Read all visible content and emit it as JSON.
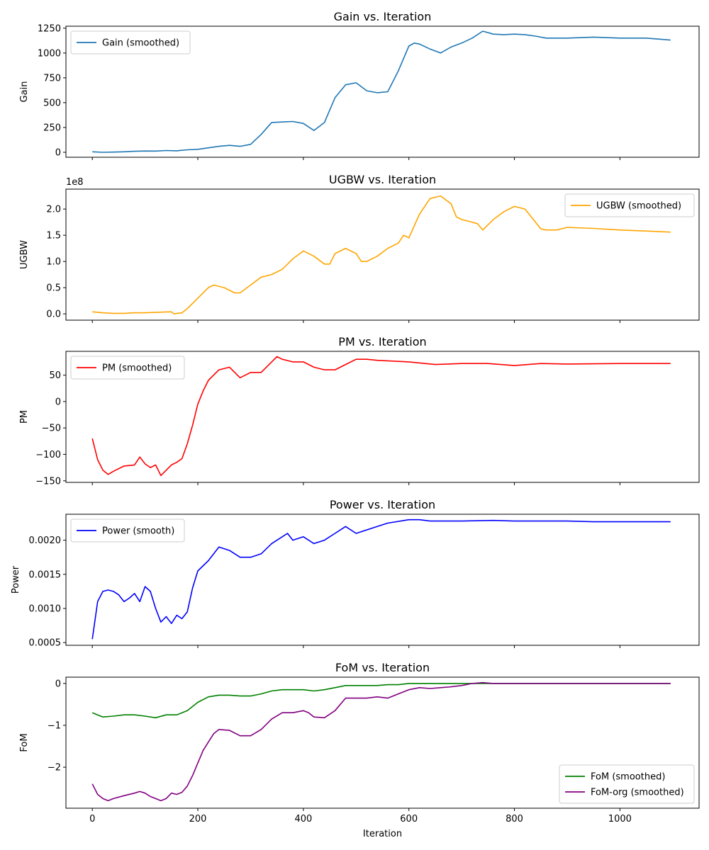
{
  "chart_data": [
    {
      "type": "line",
      "title": "Gain vs. Iteration",
      "ylabel": "Gain",
      "xlabel": "",
      "xlim": [
        -50,
        1150
      ],
      "ylim": [
        -50,
        1270
      ],
      "xticks": [
        0,
        200,
        400,
        600,
        800,
        1000
      ],
      "yticks": [
        0,
        250,
        500,
        750,
        1000,
        1250
      ],
      "ytick_labels": [
        "0",
        "250",
        "500",
        "750",
        "1000",
        "1250"
      ],
      "show_xtick_labels": false,
      "legend_loc": "upper left",
      "series": [
        {
          "name": "Gain (smoothed)",
          "color": "#1f77b4",
          "x": [
            0,
            20,
            40,
            60,
            80,
            100,
            120,
            140,
            160,
            180,
            200,
            220,
            240,
            260,
            280,
            300,
            320,
            340,
            360,
            380,
            400,
            420,
            440,
            460,
            480,
            500,
            520,
            540,
            560,
            580,
            600,
            610,
            620,
            640,
            660,
            680,
            700,
            720,
            740,
            760,
            780,
            800,
            820,
            840,
            860,
            900,
            950,
            1000,
            1050,
            1096
          ],
          "values": [
            5,
            0,
            2,
            5,
            10,
            13,
            12,
            18,
            15,
            25,
            30,
            45,
            60,
            70,
            60,
            80,
            180,
            300,
            305,
            310,
            290,
            220,
            300,
            550,
            680,
            700,
            620,
            600,
            610,
            820,
            1070,
            1100,
            1090,
            1040,
            1000,
            1060,
            1100,
            1150,
            1220,
            1190,
            1185,
            1190,
            1185,
            1170,
            1150,
            1150,
            1160,
            1150,
            1150,
            1130
          ]
        }
      ]
    },
    {
      "type": "line",
      "title": "UGBW vs. Iteration",
      "ylabel": "UGBW",
      "xlabel": "",
      "exponent_label": "1e8",
      "xlim": [
        -50,
        1150
      ],
      "ylim": [
        -0.12,
        2.38
      ],
      "xticks": [
        0,
        200,
        400,
        600,
        800,
        1000
      ],
      "yticks": [
        0,
        0.5,
        1.0,
        1.5,
        2.0
      ],
      "ytick_labels": [
        "0.0",
        "0.5",
        "1.0",
        "1.5",
        "2.0"
      ],
      "show_xtick_labels": false,
      "legend_loc": "upper right",
      "series": [
        {
          "name": "UGBW (smoothed)",
          "color": "#ffa500",
          "x": [
            0,
            20,
            40,
            60,
            80,
            100,
            120,
            150,
            155,
            170,
            180,
            200,
            220,
            230,
            250,
            270,
            280,
            300,
            320,
            340,
            360,
            380,
            400,
            420,
            440,
            450,
            460,
            480,
            500,
            510,
            520,
            540,
            560,
            580,
            590,
            600,
            620,
            640,
            660,
            680,
            690,
            700,
            720,
            730,
            740,
            760,
            780,
            800,
            820,
            840,
            850,
            860,
            880,
            900,
            950,
            1000,
            1050,
            1096
          ],
          "values": [
            0.04,
            0.02,
            0.01,
            0.01,
            0.02,
            0.02,
            0.03,
            0.04,
            0.0,
            0.02,
            0.1,
            0.3,
            0.5,
            0.55,
            0.5,
            0.4,
            0.4,
            0.55,
            0.7,
            0.75,
            0.85,
            1.05,
            1.2,
            1.1,
            0.95,
            0.95,
            1.15,
            1.25,
            1.15,
            1.0,
            1.0,
            1.1,
            1.25,
            1.35,
            1.5,
            1.45,
            1.9,
            2.2,
            2.25,
            2.1,
            1.85,
            1.8,
            1.75,
            1.72,
            1.6,
            1.8,
            1.95,
            2.05,
            2.0,
            1.75,
            1.62,
            1.6,
            1.6,
            1.65,
            1.63,
            1.6,
            1.58,
            1.56
          ]
        }
      ]
    },
    {
      "type": "line",
      "title": "PM vs. Iteration",
      "ylabel": "PM",
      "xlabel": "",
      "xlim": [
        -50,
        1150
      ],
      "ylim": [
        -153,
        95
      ],
      "xticks": [
        0,
        200,
        400,
        600,
        800,
        1000
      ],
      "yticks": [
        -150,
        -100,
        -50,
        0,
        50
      ],
      "ytick_labels": [
        "−150",
        "−100",
        "−50",
        "0",
        "50"
      ],
      "show_xtick_labels": false,
      "legend_loc": "upper left",
      "series": [
        {
          "name": "PM (smoothed)",
          "color": "#ff0000",
          "x": [
            0,
            10,
            20,
            30,
            40,
            60,
            80,
            90,
            100,
            110,
            120,
            130,
            140,
            150,
            160,
            170,
            180,
            190,
            200,
            210,
            220,
            240,
            260,
            280,
            300,
            320,
            340,
            350,
            360,
            380,
            400,
            410,
            420,
            440,
            460,
            480,
            500,
            520,
            540,
            600,
            650,
            700,
            750,
            800,
            850,
            900,
            1000,
            1096
          ],
          "values": [
            -70,
            -110,
            -130,
            -138,
            -132,
            -122,
            -120,
            -105,
            -118,
            -125,
            -120,
            -140,
            -130,
            -120,
            -115,
            -108,
            -80,
            -45,
            -5,
            20,
            40,
            60,
            65,
            45,
            55,
            55,
            75,
            85,
            80,
            75,
            75,
            70,
            65,
            60,
            60,
            70,
            80,
            80,
            78,
            75,
            70,
            72,
            72,
            68,
            72,
            71,
            72,
            72
          ]
        }
      ]
    },
    {
      "type": "line",
      "title": "Power vs. Iteration",
      "ylabel": "Power",
      "xlabel": "",
      "xlim": [
        -50,
        1150
      ],
      "ylim": [
        0.00046,
        0.00238
      ],
      "xticks": [
        0,
        200,
        400,
        600,
        800,
        1000
      ],
      "yticks": [
        0.0005,
        0.001,
        0.0015,
        0.002
      ],
      "ytick_labels": [
        "0.0005",
        "0.0010",
        "0.0015",
        "0.0020"
      ],
      "show_xtick_labels": false,
      "legend_loc": "upper left",
      "series": [
        {
          "name": "Power (smooth)",
          "color": "#0000ff",
          "x": [
            0,
            10,
            20,
            30,
            40,
            50,
            60,
            70,
            80,
            90,
            100,
            110,
            120,
            130,
            140,
            150,
            160,
            170,
            180,
            190,
            200,
            220,
            240,
            260,
            280,
            300,
            320,
            340,
            360,
            370,
            380,
            400,
            420,
            440,
            460,
            480,
            500,
            540,
            560,
            600,
            620,
            640,
            700,
            760,
            800,
            850,
            900,
            950,
            1000,
            1096
          ],
          "values": [
            0.00055,
            0.0011,
            0.00125,
            0.00127,
            0.00125,
            0.0012,
            0.0011,
            0.00115,
            0.00122,
            0.0011,
            0.00132,
            0.00125,
            0.001,
            0.0008,
            0.00088,
            0.00078,
            0.0009,
            0.00085,
            0.00095,
            0.0013,
            0.00155,
            0.0017,
            0.0019,
            0.00185,
            0.00175,
            0.00175,
            0.0018,
            0.00195,
            0.00205,
            0.0021,
            0.002,
            0.00205,
            0.00195,
            0.002,
            0.0021,
            0.0022,
            0.0021,
            0.0022,
            0.00225,
            0.0023,
            0.0023,
            0.00228,
            0.00228,
            0.00229,
            0.00228,
            0.00228,
            0.00228,
            0.00227,
            0.00227,
            0.00227
          ]
        }
      ]
    },
    {
      "type": "line",
      "title": "FoM vs. Iteration",
      "ylabel": "FoM",
      "xlabel": "Iteration",
      "xlim": [
        -50,
        1150
      ],
      "ylim": [
        -2.98,
        0.15
      ],
      "xticks": [
        0,
        200,
        400,
        600,
        800,
        1000
      ],
      "xtick_labels": [
        "0",
        "200",
        "400",
        "600",
        "800",
        "1000"
      ],
      "yticks": [
        -2,
        -1,
        0
      ],
      "ytick_labels": [
        "−2",
        "−1",
        "0"
      ],
      "show_xtick_labels": true,
      "legend_loc": "lower right",
      "series": [
        {
          "name": "FoM (smoothed)",
          "color": "#008000",
          "x": [
            0,
            20,
            40,
            60,
            80,
            100,
            120,
            140,
            160,
            180,
            200,
            220,
            240,
            260,
            280,
            300,
            320,
            340,
            360,
            380,
            400,
            420,
            440,
            460,
            480,
            500,
            540,
            560,
            580,
            600,
            620,
            650,
            700,
            740,
            760,
            800,
            900,
            1000,
            1096
          ],
          "values": [
            -0.7,
            -0.8,
            -0.78,
            -0.75,
            -0.75,
            -0.78,
            -0.82,
            -0.75,
            -0.75,
            -0.65,
            -0.45,
            -0.32,
            -0.28,
            -0.28,
            -0.3,
            -0.3,
            -0.25,
            -0.18,
            -0.15,
            -0.15,
            -0.15,
            -0.18,
            -0.15,
            -0.1,
            -0.05,
            -0.05,
            -0.05,
            -0.03,
            -0.03,
            0.0,
            0.0,
            0.0,
            0.0,
            0.0,
            0.0,
            0.0,
            0.0,
            0.0,
            0.0
          ]
        },
        {
          "name": "FoM-org (smoothed)",
          "color": "#800080",
          "x": [
            0,
            10,
            20,
            30,
            40,
            60,
            80,
            90,
            100,
            110,
            120,
            130,
            140,
            150,
            160,
            170,
            180,
            190,
            200,
            210,
            220,
            230,
            240,
            260,
            280,
            300,
            320,
            340,
            360,
            380,
            400,
            410,
            420,
            440,
            460,
            480,
            500,
            520,
            540,
            560,
            580,
            600,
            620,
            640,
            660,
            680,
            700,
            720,
            740,
            760,
            800,
            900,
            1000,
            1096
          ],
          "values": [
            -2.4,
            -2.65,
            -2.75,
            -2.8,
            -2.75,
            -2.68,
            -2.62,
            -2.58,
            -2.62,
            -2.7,
            -2.75,
            -2.8,
            -2.75,
            -2.62,
            -2.65,
            -2.6,
            -2.45,
            -2.2,
            -1.9,
            -1.6,
            -1.4,
            -1.2,
            -1.1,
            -1.12,
            -1.25,
            -1.25,
            -1.1,
            -0.85,
            -0.7,
            -0.7,
            -0.65,
            -0.7,
            -0.8,
            -0.82,
            -0.65,
            -0.35,
            -0.35,
            -0.35,
            -0.32,
            -0.35,
            -0.25,
            -0.15,
            -0.1,
            -0.12,
            -0.1,
            -0.08,
            -0.05,
            0.0,
            0.02,
            0.0,
            0.0,
            0.0,
            0.0,
            0.0
          ]
        }
      ]
    }
  ]
}
